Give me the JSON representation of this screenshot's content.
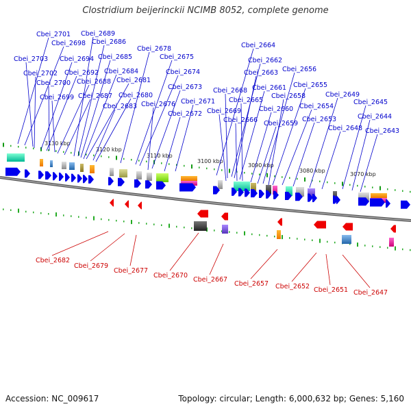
{
  "title": "Clostridium beijerinckii NCIMB 8052, complete genome",
  "footer": {
    "accession": "Accession: NC_009617",
    "topology": "Topology: circular; Length: 6,000,632 bp; Genes: 5,160"
  },
  "scale_labels": [
    "3130 kbp",
    "3120 kbp",
    "3110 kbp",
    "3100 kbp",
    "3090 kbp",
    "3080 kbp",
    "3070 kbp"
  ],
  "top_genes": [
    "Cbei_2701",
    "Cbei_2698",
    "Cbei_2703",
    "Cbei_2694",
    "Cbei_2702",
    "Cbei_2692",
    "Cbei_2700",
    "Cbei_2688",
    "Cbei_2699",
    "Cbei_2687",
    "Cbei_2689",
    "Cbei_2686",
    "Cbei_2685",
    "Cbei_2684",
    "Cbei_2681",
    "Cbei_2680",
    "Cbei_2683",
    "Cbei_2678",
    "Cbei_2675",
    "Cbei_2674",
    "Cbei_2673",
    "Cbei_2676",
    "Cbei_2671",
    "Cbei_2672",
    "Cbei_2664",
    "Cbei_2662",
    "Cbei_2663",
    "Cbei_2668",
    "Cbei_2661",
    "Cbei_2665",
    "Cbei_2669",
    "Cbei_2660",
    "Cbei_2666",
    "Cbei_2659",
    "Cbei_2656",
    "Cbei_2655",
    "Cbei_2658",
    "Cbei_2654",
    "Cbei_2653",
    "Cbei_2649",
    "Cbei_2648",
    "Cbei_2645",
    "Cbei_2644",
    "Cbei_2643"
  ],
  "bottom_genes": [
    "Cbei_2682",
    "Cbei_2679",
    "Cbei_2677",
    "Cbei_2670",
    "Cbei_2667",
    "Cbei_2657",
    "Cbei_2652",
    "Cbei_2651",
    "Cbei_2647"
  ],
  "colors": {
    "forward": "#0000ee",
    "reverse": "#ee0000",
    "top_label": "#0000cc",
    "bottom_label": "#cc0000",
    "backbone": "#888888"
  }
}
